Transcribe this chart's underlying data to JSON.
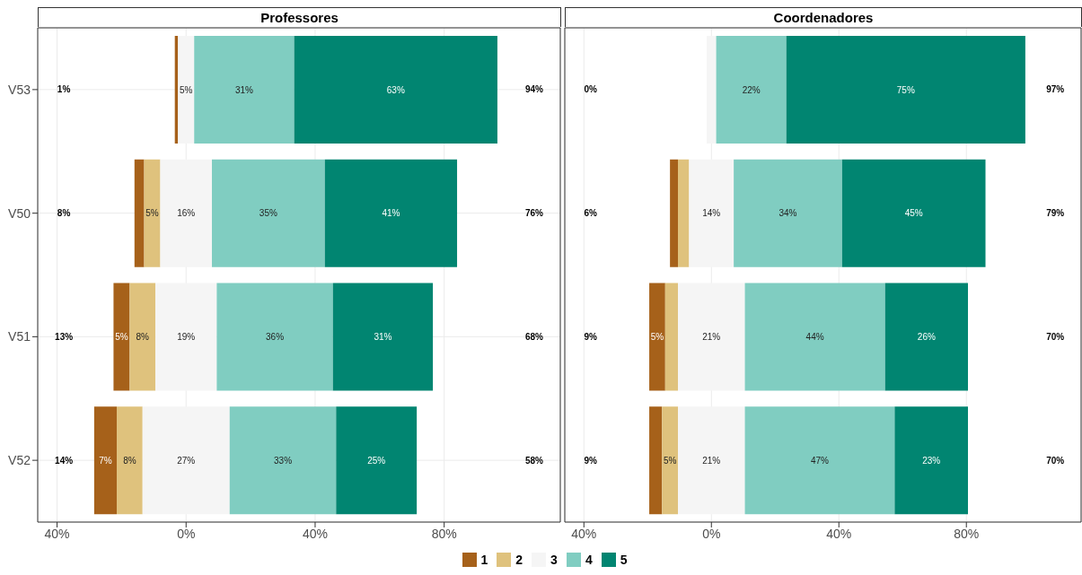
{
  "chart_data": [
    {
      "type": "bar",
      "orientation": "horizontal",
      "title": "Professores",
      "categories": [
        "V53",
        "V50",
        "V51",
        "V52"
      ],
      "xlim": [
        -46,
        116
      ],
      "xticks": [
        {
          "value": -40,
          "label": "40%"
        },
        {
          "value": 0,
          "label": "0%"
        },
        {
          "value": 40,
          "label": "40%"
        },
        {
          "value": 80,
          "label": "80%"
        }
      ],
      "grid": true,
      "legend": "bottom",
      "series": [
        {
          "name": "1",
          "color": "#a6611a",
          "values": [
            1,
            3,
            5,
            7
          ],
          "base": [
            -3.5,
            -16,
            -22.5,
            -28.5
          ],
          "value_labels": [
            null,
            null,
            "5%",
            "7%"
          ]
        },
        {
          "name": "2",
          "color": "#dfc27d",
          "values": [
            null,
            5,
            8,
            8
          ],
          "base": [
            null,
            -13,
            -17.5,
            -21.5
          ],
          "value_labels": [
            null,
            "5%",
            "8%",
            "8%"
          ]
        },
        {
          "name": "3",
          "color": "#f5f5f5",
          "values": [
            5,
            16,
            19,
            27
          ],
          "base": [
            -2.5,
            -8,
            -9.5,
            -13.5
          ],
          "value_labels": [
            "5%",
            "16%",
            "19%",
            "27%"
          ]
        },
        {
          "name": "4",
          "color": "#80cdc1",
          "values": [
            31,
            35,
            36,
            33
          ],
          "base": [
            2.5,
            8,
            9.5,
            13.5
          ],
          "value_labels": [
            "31%",
            "35%",
            "36%",
            "33%"
          ]
        },
        {
          "name": "5",
          "color": "#018571",
          "values": [
            63,
            41,
            31,
            25
          ],
          "base": [
            33.5,
            43,
            45.5,
            46.5
          ],
          "value_labels": [
            "63%",
            "41%",
            "31%",
            "25%"
          ]
        }
      ],
      "annotations": [
        "1%",
        "8%",
        "13%",
        "14%",
        "94%",
        "76%",
        "68%",
        "58%"
      ]
    },
    {
      "type": "bar",
      "orientation": "horizontal",
      "title": "Coordenadores",
      "categories": [
        "V53",
        "V50",
        "V51",
        "V52"
      ],
      "xlim": [
        -46,
        116
      ],
      "xticks": [
        {
          "value": -40,
          "label": "40%"
        },
        {
          "value": 0,
          "label": "0%"
        },
        {
          "value": 40,
          "label": "40%"
        },
        {
          "value": 80,
          "label": "80%"
        }
      ],
      "grid": true,
      "tick_labels": "x",
      "series": [
        {
          "name": "1",
          "color": "#a6611a",
          "values": [
            null,
            2.5,
            5,
            4
          ],
          "base": [
            null,
            -13,
            -19.5,
            -19.5
          ],
          "value_labels": [
            null,
            null,
            "5%",
            null
          ]
        },
        {
          "name": "2",
          "color": "#dfc27d",
          "values": [
            null,
            3.5,
            4,
            5
          ],
          "base": [
            null,
            -10.5,
            -14.5,
            -15.5
          ],
          "value_labels": [
            null,
            null,
            null,
            "5%"
          ]
        },
        {
          "name": "3",
          "color": "#f5f5f5",
          "values": [
            3,
            14,
            21,
            21
          ],
          "base": [
            -1.5,
            -7,
            -10.5,
            -10.5
          ],
          "value_labels": [
            null,
            "14%",
            "21%",
            "21%"
          ]
        },
        {
          "name": "4",
          "color": "#80cdc1",
          "values": [
            22,
            34,
            44,
            47
          ],
          "base": [
            1.5,
            7,
            10.5,
            10.5
          ],
          "value_labels": [
            "22%",
            "34%",
            "44%",
            "47%"
          ]
        },
        {
          "name": "5",
          "color": "#018571",
          "values": [
            75,
            45,
            26,
            23
          ],
          "base": [
            23.5,
            41,
            54.5,
            57.5
          ],
          "value_labels": [
            "75%",
            "45%",
            "26%",
            "23%"
          ]
        }
      ],
      "annotations": [
        "0%",
        "6%",
        "9%",
        "9%",
        "97%",
        "79%",
        "70%",
        "70%"
      ]
    }
  ]
}
